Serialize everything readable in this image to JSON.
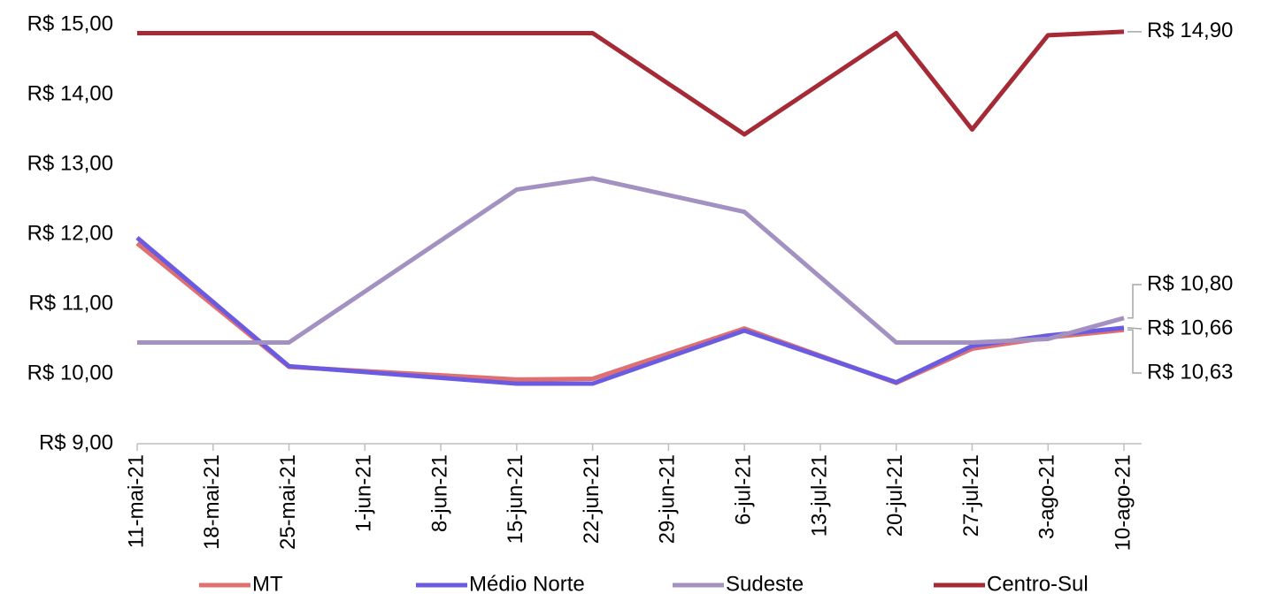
{
  "chart_data": {
    "type": "line",
    "x": [
      "11-mai-21",
      "25-mai-21",
      "15-jun-21",
      "22-jun-21",
      "6-jul-21",
      "20-jul-21",
      "27-jul-21",
      "3-ago-21",
      "10-ago-21"
    ],
    "xticks": [
      "11-mai-21",
      "18-mai-21",
      "25-mai-21",
      "1-jun-21",
      "8-jun-21",
      "15-jun-21",
      "22-jun-21",
      "29-jun-21",
      "6-jul-21",
      "13-jul-21",
      "20-jul-21",
      "27-jul-21",
      "3-ago-21",
      "10-ago-21"
    ],
    "ylim": [
      9,
      15
    ],
    "yticks": [
      {
        "value": 9,
        "label": "R$ 9,00"
      },
      {
        "value": 10,
        "label": "R$ 10,00"
      },
      {
        "value": 11,
        "label": "R$ 11,00"
      },
      {
        "value": 12,
        "label": "R$ 12,00"
      },
      {
        "value": 13,
        "label": "R$ 13,00"
      },
      {
        "value": 14,
        "label": "R$ 14,00"
      },
      {
        "value": 15,
        "label": "R$ 15,00"
      }
    ],
    "grid": false,
    "legend": "bottom",
    "series": [
      {
        "name": "MT",
        "color": "#e07070",
        "values": [
          11.87,
          10.1,
          9.92,
          9.93,
          10.65,
          9.87,
          10.36,
          10.52,
          10.63
        ],
        "value_labels": [
          null,
          null,
          null,
          null,
          null,
          null,
          null,
          null,
          "R$ 10,63"
        ]
      },
      {
        "name": "Médio Norte",
        "color": "#6b5be0",
        "values": [
          11.95,
          10.11,
          9.86,
          9.86,
          10.62,
          9.88,
          10.4,
          10.55,
          10.66
        ],
        "value_labels": [
          null,
          null,
          null,
          null,
          null,
          null,
          null,
          null,
          "R$ 10,66"
        ]
      },
      {
        "name": "Sudeste",
        "color": "#a391c2",
        "values": [
          10.45,
          10.45,
          12.64,
          12.8,
          12.32,
          10.45,
          10.45,
          10.5,
          10.8
        ],
        "value_labels": [
          null,
          null,
          null,
          null,
          null,
          null,
          null,
          null,
          "R$ 10,80"
        ]
      },
      {
        "name": "Centro-Sul",
        "color": "#a52a35",
        "values": [
          14.88,
          14.88,
          14.88,
          14.88,
          13.43,
          14.88,
          13.5,
          14.85,
          14.9
        ],
        "value_labels": [
          null,
          null,
          null,
          null,
          null,
          null,
          null,
          null,
          "R$ 14,90"
        ]
      }
    ]
  }
}
